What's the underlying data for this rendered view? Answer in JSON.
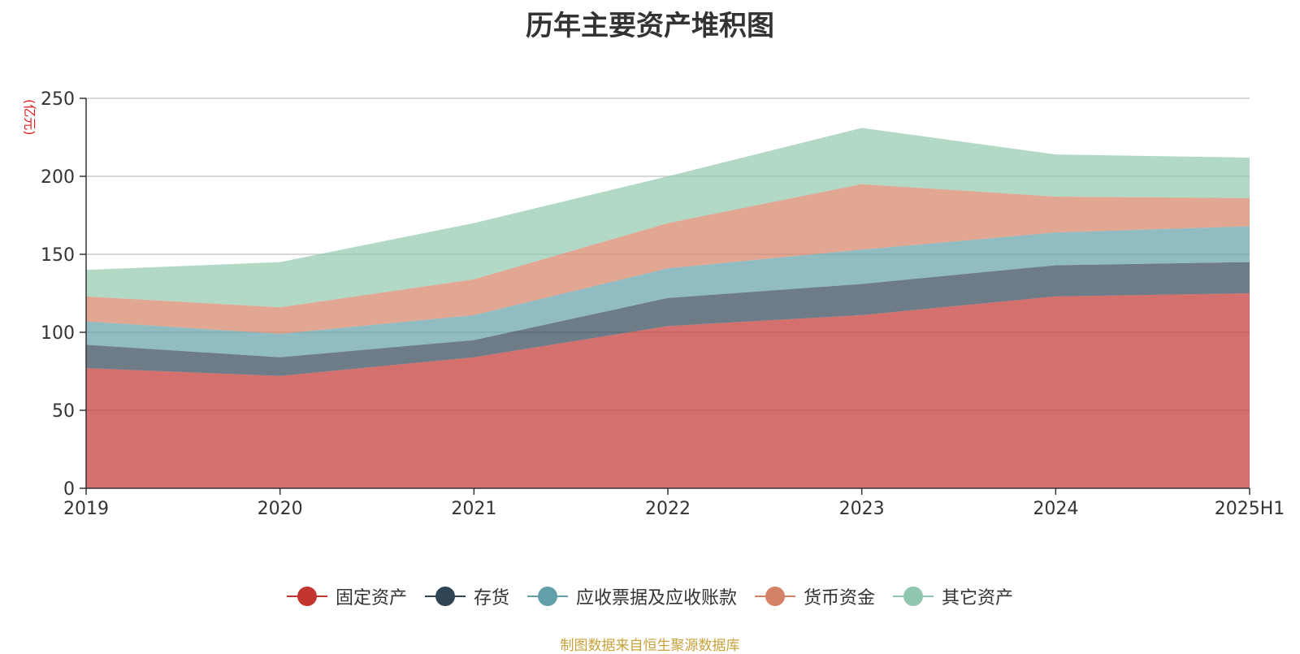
{
  "title": "历年主要资产堆积图",
  "unit_label": "(亿元)",
  "source": "制图数据来自恒生聚源数据库",
  "chart_data": {
    "type": "area",
    "stacked": true,
    "title": "历年主要资产堆积图",
    "ylabel": "(亿元)",
    "ylim": [
      0,
      250
    ],
    "yticks": [
      0,
      50,
      100,
      150,
      200,
      250
    ],
    "grid": true,
    "legend_position": "bottom",
    "categories": [
      "2019",
      "2020",
      "2021",
      "2022",
      "2023",
      "2024",
      "2025H1"
    ],
    "series": [
      {
        "name": "固定资产",
        "color": "#c23531",
        "values": [
          77,
          72,
          84,
          104,
          111,
          123,
          125
        ]
      },
      {
        "name": "存货",
        "color": "#2f4554",
        "values": [
          15,
          12,
          11,
          18,
          20,
          20,
          20
        ]
      },
      {
        "name": "应收票据及应收账款",
        "color": "#61a0a8",
        "values": [
          15,
          15,
          16,
          19,
          22,
          21,
          23
        ]
      },
      {
        "name": "货币资金",
        "color": "#d48265",
        "values": [
          16,
          17,
          23,
          29,
          42,
          23,
          18
        ]
      },
      {
        "name": "其它资产",
        "color": "#91c7ae",
        "values": [
          17,
          29,
          36,
          30,
          36,
          27,
          26
        ]
      }
    ]
  }
}
